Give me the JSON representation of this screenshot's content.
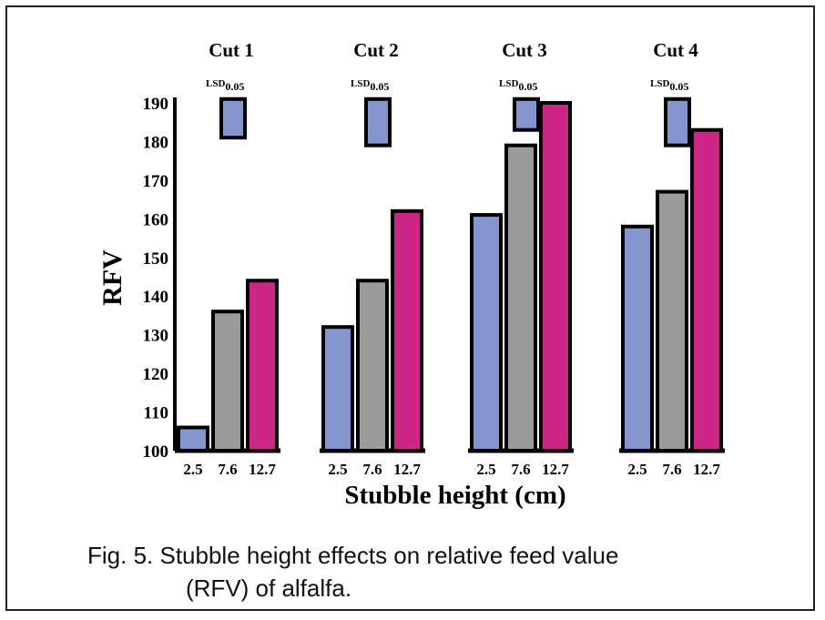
{
  "chart_data": {
    "type": "bar",
    "title": "",
    "xlabel": "Stubble height (cm)",
    "ylabel": "RFV",
    "ylim": [
      100,
      190
    ],
    "yticks": [
      100,
      110,
      120,
      130,
      140,
      150,
      160,
      170,
      180,
      190
    ],
    "categories": [
      "2.5",
      "7.6",
      "12.7"
    ],
    "groups": [
      {
        "name": "Cut 1",
        "values": [
          106,
          136,
          144
        ],
        "lsd_label": "LSD",
        "lsd_sub": "0.05",
        "lsd_value": 10
      },
      {
        "name": "Cut 2",
        "values": [
          132,
          144,
          162
        ],
        "lsd_label": "LSD",
        "lsd_sub": "0.05",
        "lsd_value": 12
      },
      {
        "name": "Cut 3",
        "values": [
          161,
          179,
          190
        ],
        "lsd_label": "LSD",
        "lsd_sub": "0.05",
        "lsd_value": 8
      },
      {
        "name": "Cut 4",
        "values": [
          158,
          167,
          183
        ],
        "lsd_label": "LSD",
        "lsd_sub": "0.05",
        "lsd_value": 12
      }
    ],
    "lsd_top": 191,
    "colors": [
      "#8596cf",
      "#9b9b9b",
      "#cc2585"
    ],
    "bar_stroke": "#000000"
  },
  "caption": {
    "line1": "Fig. 5.  Stubble height effects on relative feed value",
    "line2": "(RFV) of alfalfa."
  }
}
